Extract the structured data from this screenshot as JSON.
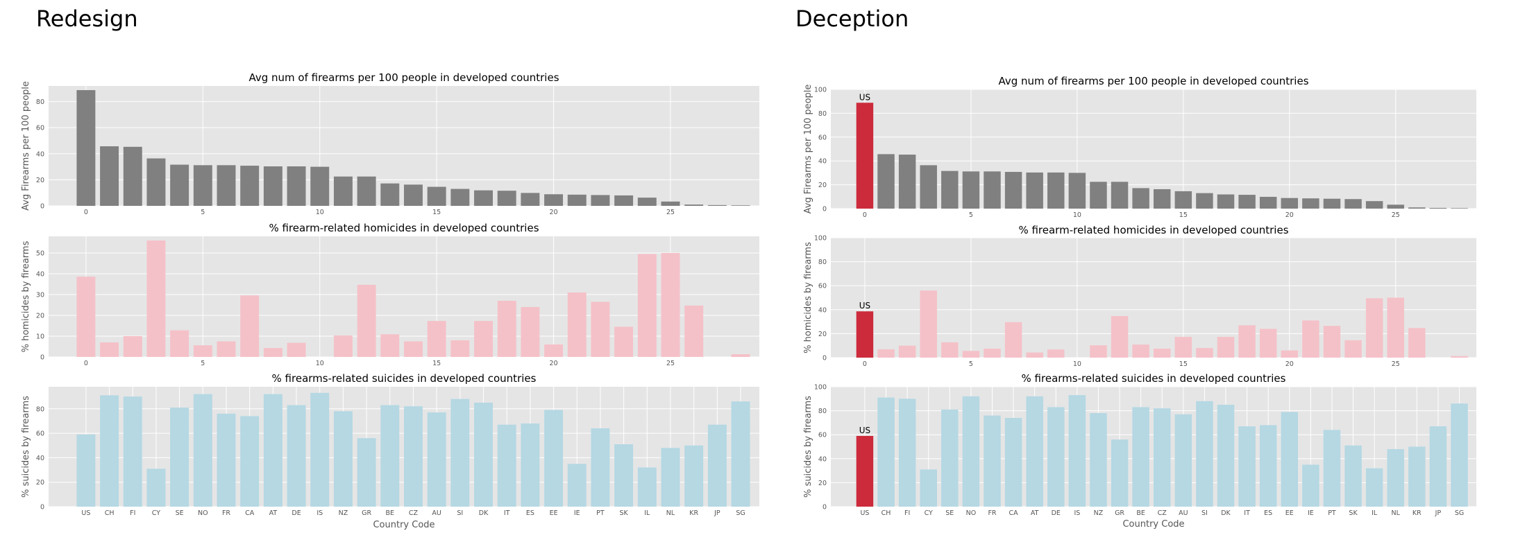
{
  "panels": {
    "left_title": "Redesign",
    "right_title": "Deception"
  },
  "colors": {
    "axes_bg": "#e5e5e5",
    "grid": "#ffffff",
    "firearms": "#808080",
    "homicides": "#f5c1c8",
    "suicides": "#b5d8e3",
    "highlight": "#cc2b3c"
  },
  "chart_data": [
    {
      "panel": "Redesign",
      "type": "bar",
      "title": "Avg num of firearms per 100 people in developed countries",
      "xlabel": "",
      "ylabel": "Avg Firearms per 100 people",
      "x_ticks": [
        0,
        5,
        10,
        15,
        20,
        25
      ],
      "ylim": [
        0,
        92
      ],
      "y_ticks": [
        0,
        20,
        40,
        60,
        80
      ],
      "grid": true,
      "color": "#808080",
      "values": [
        88.8,
        45.7,
        45.3,
        36.4,
        31.6,
        31.2,
        31.2,
        30.8,
        30.3,
        30.3,
        30.0,
        22.5,
        22.5,
        17.2,
        16.3,
        14.6,
        13.0,
        11.9,
        11.6,
        9.9,
        8.9,
        8.6,
        8.3,
        8.0,
        6.3,
        3.3,
        1.0,
        0.6,
        0.4
      ]
    },
    {
      "panel": "Redesign",
      "type": "bar",
      "title": "% firearm-related homicides in developed countries",
      "xlabel": "",
      "ylabel": "% homicides by firearms",
      "x_ticks": [
        0,
        5,
        10,
        15,
        20,
        25
      ],
      "ylim": [
        0,
        58
      ],
      "y_ticks": [
        0,
        10,
        20,
        30,
        40,
        50
      ],
      "grid": true,
      "color": "#f5c1c8",
      "values": [
        38.6,
        7.0,
        10.0,
        56.0,
        12.8,
        5.6,
        7.5,
        29.6,
        4.3,
        6.8,
        0,
        10.3,
        34.7,
        10.9,
        7.5,
        17.3,
        8.0,
        17.3,
        27.0,
        24.0,
        6.0,
        31.0,
        26.5,
        14.5,
        49.5,
        50.0,
        24.7,
        0,
        1.3
      ]
    },
    {
      "panel": "Redesign",
      "type": "bar",
      "title": "% firearms-related suicides in developed countries",
      "xlabel": "Country Code",
      "ylabel": "% suicides by firearms",
      "categories": [
        "US",
        "CH",
        "FI",
        "CY",
        "SE",
        "NO",
        "FR",
        "CA",
        "AT",
        "DE",
        "IS",
        "NZ",
        "GR",
        "BE",
        "CZ",
        "AU",
        "SI",
        "DK",
        "IT",
        "ES",
        "EE",
        "IE",
        "PT",
        "SK",
        "IL",
        "NL",
        "KR",
        "JP",
        "SG"
      ],
      "ylim": [
        0,
        98
      ],
      "y_ticks": [
        0,
        20,
        40,
        60,
        80
      ],
      "grid": true,
      "color": "#b5d8e3",
      "values": [
        59,
        91,
        90,
        31,
        81,
        92,
        76,
        74,
        92,
        83,
        93,
        78,
        56,
        83,
        82,
        77,
        88,
        85,
        67,
        68,
        79,
        35,
        64,
        51,
        32,
        48,
        50,
        67,
        86
      ]
    },
    {
      "panel": "Deception",
      "type": "bar",
      "title": "Avg num of firearms per 100 people in developed countries",
      "xlabel": "",
      "ylabel": "Avg Firearms per 100 people",
      "x_ticks": [
        0,
        5,
        10,
        15,
        20,
        25
      ],
      "ylim": [
        0,
        100
      ],
      "y_ticks": [
        0,
        20,
        40,
        60,
        80,
        100
      ],
      "grid": true,
      "color": "#808080",
      "highlight_index": 0,
      "annotation": "US",
      "values": [
        88.8,
        45.7,
        45.3,
        36.4,
        31.6,
        31.2,
        31.2,
        30.8,
        30.3,
        30.3,
        30.0,
        22.5,
        22.5,
        17.2,
        16.3,
        14.6,
        13.0,
        11.9,
        11.6,
        9.9,
        8.9,
        8.6,
        8.3,
        8.0,
        6.3,
        3.3,
        1.0,
        0.6,
        0.4
      ]
    },
    {
      "panel": "Deception",
      "type": "bar",
      "title": "% firearm-related homicides in developed countries",
      "xlabel": "",
      "ylabel": "% homicides by firearms",
      "x_ticks": [
        0,
        5,
        10,
        15,
        20,
        25
      ],
      "ylim": [
        0,
        100
      ],
      "y_ticks": [
        0,
        20,
        40,
        60,
        80,
        100
      ],
      "grid": true,
      "color": "#f5c1c8",
      "highlight_index": 0,
      "annotation": "US",
      "values": [
        38.6,
        7.0,
        10.0,
        56.0,
        12.8,
        5.6,
        7.5,
        29.6,
        4.3,
        6.8,
        0,
        10.3,
        34.7,
        10.9,
        7.5,
        17.3,
        8.0,
        17.3,
        27.0,
        24.0,
        6.0,
        31.0,
        26.5,
        14.5,
        49.5,
        50.0,
        24.7,
        0,
        1.3
      ]
    },
    {
      "panel": "Deception",
      "type": "bar",
      "title": "% firearms-related suicides in developed countries",
      "xlabel": "Country Code",
      "ylabel": "% suicides by firearms",
      "categories": [
        "US",
        "CH",
        "FI",
        "CY",
        "SE",
        "NO",
        "FR",
        "CA",
        "AT",
        "DE",
        "IS",
        "NZ",
        "GR",
        "BE",
        "CZ",
        "AU",
        "SI",
        "DK",
        "IT",
        "ES",
        "EE",
        "IE",
        "PT",
        "SK",
        "IL",
        "NL",
        "KR",
        "JP",
        "SG"
      ],
      "ylim": [
        0,
        100
      ],
      "y_ticks": [
        0,
        20,
        40,
        60,
        80,
        100
      ],
      "grid": true,
      "color": "#b5d8e3",
      "highlight_index": 0,
      "annotation": "US",
      "values": [
        59,
        91,
        90,
        31,
        81,
        92,
        76,
        74,
        92,
        83,
        93,
        78,
        56,
        83,
        82,
        77,
        88,
        85,
        67,
        68,
        79,
        35,
        64,
        51,
        32,
        48,
        50,
        67,
        86
      ]
    }
  ]
}
